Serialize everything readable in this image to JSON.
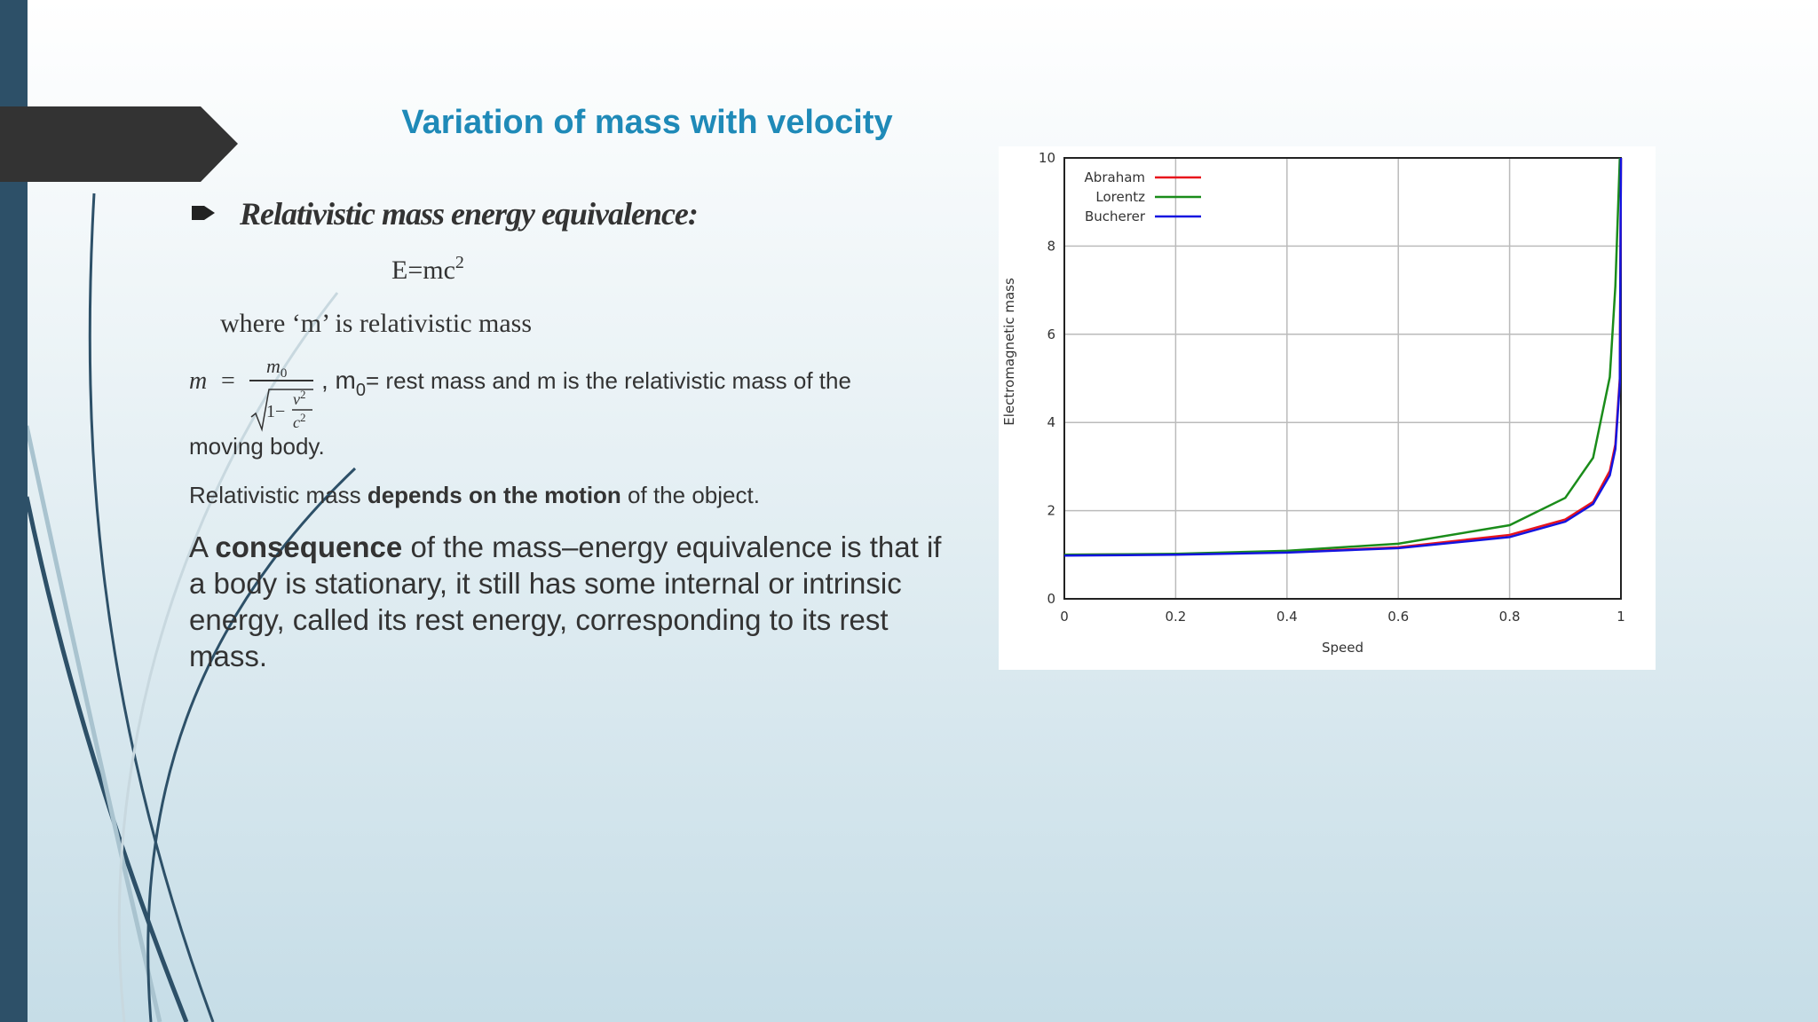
{
  "slide": {
    "title": "Variation of mass with velocity",
    "bullet": "Relativistic mass energy equivalence:",
    "equation": {
      "base": "E=mc",
      "exponent": "2"
    },
    "where": "where ‘m’ is relativistic mass",
    "formula": {
      "lhs": "m",
      "equals": "=",
      "num_base": "m",
      "num_sub": "0",
      "one_minus": "1−",
      "v": "v",
      "v_exp": "2",
      "c": "c",
      "c_exp": "2"
    },
    "definition": {
      "lead": ", m",
      "sub": "0",
      "rest": "= rest mass and m is the relativistic mass of the",
      "line2": "moving body."
    },
    "motion": {
      "lead": "Relativistic mass ",
      "bold": "depends on the motion",
      "rest": " of the object."
    },
    "paragraph": {
      "lead": "A ",
      "bold": "consequence",
      "lines": [
        " of the mass–energy equivalence is that if",
        "a body is stationary, it still has some internal or intrinsic",
        "energy, called its rest energy,  corresponding to its rest",
        "mass."
      ]
    }
  },
  "chart_data": {
    "type": "line",
    "x_label": "Speed",
    "y_label": "Electromagnetic mass",
    "x": [
      0,
      0.2,
      0.4,
      0.6,
      0.8,
      0.9,
      0.95,
      0.98,
      0.99,
      0.998,
      1
    ],
    "series": [
      {
        "name": "Abraham",
        "color": "#e8141c",
        "values": [
          1,
          1.01,
          1.06,
          1.17,
          1.45,
          1.8,
          2.2,
          2.9,
          3.5,
          5,
          10
        ]
      },
      {
        "name": "Lorentz",
        "color": "#1a8c1a",
        "values": [
          1,
          1.02,
          1.09,
          1.25,
          1.67,
          2.29,
          3.2,
          5.03,
          7.09,
          10,
          null
        ]
      },
      {
        "name": "Bucherer",
        "color": "#1414e0",
        "values": [
          0.98,
          1.0,
          1.05,
          1.15,
          1.4,
          1.75,
          2.15,
          2.8,
          3.4,
          4.9,
          10
        ]
      }
    ],
    "xlim": [
      0,
      1
    ],
    "xticks": [
      0,
      0.2,
      0.4,
      0.6,
      0.8,
      1
    ],
    "ylim": [
      0,
      10
    ],
    "yticks": [
      0,
      2,
      4,
      6,
      8,
      10
    ],
    "grid": true,
    "legend": "top-left"
  }
}
